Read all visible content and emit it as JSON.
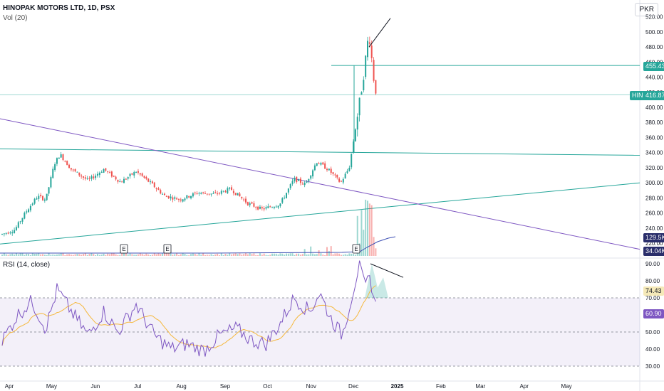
{
  "header": {
    "title": "HINOPAK MOTORS LTD, 1D, PSX",
    "volume_label": "Vol (20)",
    "rsi_label": "RSI (14, close)",
    "currency": "PKR"
  },
  "colors": {
    "up": "#26a69a",
    "down": "#ef5350",
    "trendline_teal": "#26a69a",
    "trendline_purple": "#7e57c2",
    "rsi": "#7e57c2",
    "rsi_ma": "#f5b83d",
    "rsi_band": "#7e57c2",
    "annotation": "#131722"
  },
  "price_badges": {
    "level": "455.43",
    "symbol": "HINO",
    "last": "416.87",
    "vol": "129.5K",
    "vol_ma": "34.04K",
    "rsi_ma": "74.43",
    "rsi": "60.90"
  },
  "earnings_marker": "E",
  "chart_data": [
    {
      "type": "candlestick",
      "title": "HINOPAK MOTORS LTD, 1D, PSX",
      "x_ticks": [
        "Apr",
        "May",
        "Jun",
        "Jul",
        "Aug",
        "Sep",
        "Oct",
        "Nov",
        "Dec",
        "2025",
        "Feb",
        "Mar",
        "Apr",
        "May"
      ],
      "y_ticks": [
        "520.00",
        "500.00",
        "480.00",
        "460.00",
        "440.00",
        "420.00",
        "400.00",
        "380.00",
        "360.00",
        "340.00",
        "320.00",
        "300.00",
        "280.00",
        "260.00",
        "240.00",
        "220.00"
      ],
      "ylim": [
        200,
        528
      ],
      "last_price": 416.87,
      "horizontal_level": 455.43,
      "anchors": [
        {
          "date": "2024-04-01",
          "v": 232
        },
        {
          "date": "2024-04-10",
          "v": 238
        },
        {
          "date": "2024-04-18",
          "v": 262
        },
        {
          "date": "2024-04-26",
          "v": 282
        },
        {
          "date": "2024-05-02",
          "v": 278
        },
        {
          "date": "2024-05-08",
          "v": 325
        },
        {
          "date": "2024-05-12",
          "v": 338
        },
        {
          "date": "2024-05-20",
          "v": 318
        },
        {
          "date": "2024-06-01",
          "v": 303
        },
        {
          "date": "2024-06-12",
          "v": 318
        },
        {
          "date": "2024-06-24",
          "v": 301
        },
        {
          "date": "2024-07-05",
          "v": 315
        },
        {
          "date": "2024-07-15",
          "v": 300
        },
        {
          "date": "2024-07-25",
          "v": 283
        },
        {
          "date": "2024-08-05",
          "v": 278
        },
        {
          "date": "2024-08-18",
          "v": 287
        },
        {
          "date": "2024-08-30",
          "v": 285
        },
        {
          "date": "2024-09-10",
          "v": 292
        },
        {
          "date": "2024-09-22",
          "v": 273
        },
        {
          "date": "2024-10-02",
          "v": 265
        },
        {
          "date": "2024-10-15",
          "v": 272
        },
        {
          "date": "2024-10-25",
          "v": 305
        },
        {
          "date": "2024-11-02",
          "v": 298
        },
        {
          "date": "2024-11-10",
          "v": 328
        },
        {
          "date": "2024-11-18",
          "v": 318
        },
        {
          "date": "2024-11-27",
          "v": 300
        },
        {
          "date": "2024-12-03",
          "v": 320
        },
        {
          "date": "2024-12-09",
          "v": 390
        },
        {
          "date": "2024-12-13",
          "v": 440
        },
        {
          "date": "2024-12-17",
          "v": 500
        },
        {
          "date": "2024-12-21",
          "v": 428
        },
        {
          "date": "2024-12-23",
          "v": 416.87
        }
      ]
    },
    {
      "type": "bar",
      "title": "Vol (20)",
      "last_volume": "129.5K",
      "volume_ma": "34.04K"
    },
    {
      "type": "line",
      "title": "RSI (14, close)",
      "y_ticks": [
        "90.00",
        "80.00",
        "70.00",
        "60.00",
        "50.00",
        "40.00",
        "30.00"
      ],
      "ylim": [
        28,
        94
      ],
      "band": [
        30,
        70
      ],
      "midline": 50,
      "rsi_last": 60.9,
      "rsi_ma_last": 74.43,
      "anchors": [
        {
          "date": "2024-04-01",
          "v": 45
        },
        {
          "date": "2024-04-12",
          "v": 60
        },
        {
          "date": "2024-04-22",
          "v": 68
        },
        {
          "date": "2024-05-02",
          "v": 52
        },
        {
          "date": "2024-05-10",
          "v": 75
        },
        {
          "date": "2024-05-20",
          "v": 62
        },
        {
          "date": "2024-06-01",
          "v": 48
        },
        {
          "date": "2024-06-12",
          "v": 62
        },
        {
          "date": "2024-06-22",
          "v": 50
        },
        {
          "date": "2024-07-05",
          "v": 66
        },
        {
          "date": "2024-07-18",
          "v": 48
        },
        {
          "date": "2024-07-30",
          "v": 40
        },
        {
          "date": "2024-08-10",
          "v": 43
        },
        {
          "date": "2024-08-22",
          "v": 39
        },
        {
          "date": "2024-09-02",
          "v": 48
        },
        {
          "date": "2024-09-14",
          "v": 52
        },
        {
          "date": "2024-09-25",
          "v": 45
        },
        {
          "date": "2024-10-05",
          "v": 43
        },
        {
          "date": "2024-10-15",
          "v": 55
        },
        {
          "date": "2024-10-25",
          "v": 70
        },
        {
          "date": "2024-11-05",
          "v": 62
        },
        {
          "date": "2024-11-12",
          "v": 73
        },
        {
          "date": "2024-11-20",
          "v": 58
        },
        {
          "date": "2024-11-28",
          "v": 48
        },
        {
          "date": "2024-12-04",
          "v": 68
        },
        {
          "date": "2024-12-10",
          "v": 89
        },
        {
          "date": "2024-12-14",
          "v": 76
        },
        {
          "date": "2024-12-18",
          "v": 82
        },
        {
          "date": "2024-12-21",
          "v": 68
        },
        {
          "date": "2024-12-23",
          "v": 60.9
        }
      ]
    }
  ]
}
